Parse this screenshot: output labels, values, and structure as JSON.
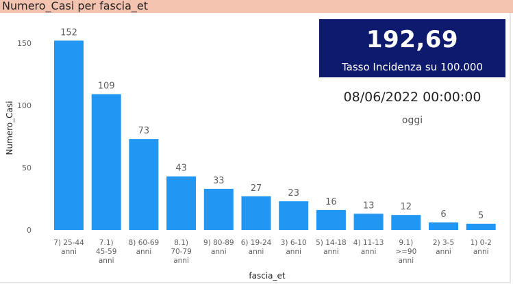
{
  "header": {
    "title": "Numero_Casi per fascia_et"
  },
  "kpi": {
    "value": "192,69",
    "label": "Tasso Incidenza su 100.000"
  },
  "date": {
    "value": "08/06/2022 00:00:00",
    "label": "oggi"
  },
  "colors": {
    "bar": "#2196f3",
    "kpi_bg": "#0d1a6e",
    "title_bg": "#f4c4b0"
  },
  "chart_data": {
    "type": "bar",
    "categories": [
      [
        "7) 25-44",
        "anni"
      ],
      [
        "7.1)",
        "45-59",
        "anni"
      ],
      [
        "8) 60-69",
        "anni"
      ],
      [
        "8.1)",
        "70-79",
        "anni"
      ],
      [
        "9) 80-89",
        "anni"
      ],
      [
        "6) 19-24",
        "anni"
      ],
      [
        "3) 6-10",
        "anni"
      ],
      [
        "5) 14-18",
        "anni"
      ],
      [
        "4) 11-13",
        "anni"
      ],
      [
        "9.1)",
        ">=90",
        "anni"
      ],
      [
        "2) 3-5",
        "anni"
      ],
      [
        "1) 0-2",
        "anni"
      ]
    ],
    "values": [
      152,
      109,
      73,
      43,
      33,
      27,
      23,
      16,
      13,
      12,
      6,
      5
    ],
    "xlabel": "fascia_et",
    "ylabel": "Numero_Casi",
    "ylim": [
      0,
      165
    ],
    "yticks": [
      0,
      50,
      100,
      150
    ],
    "data_labels": true
  }
}
